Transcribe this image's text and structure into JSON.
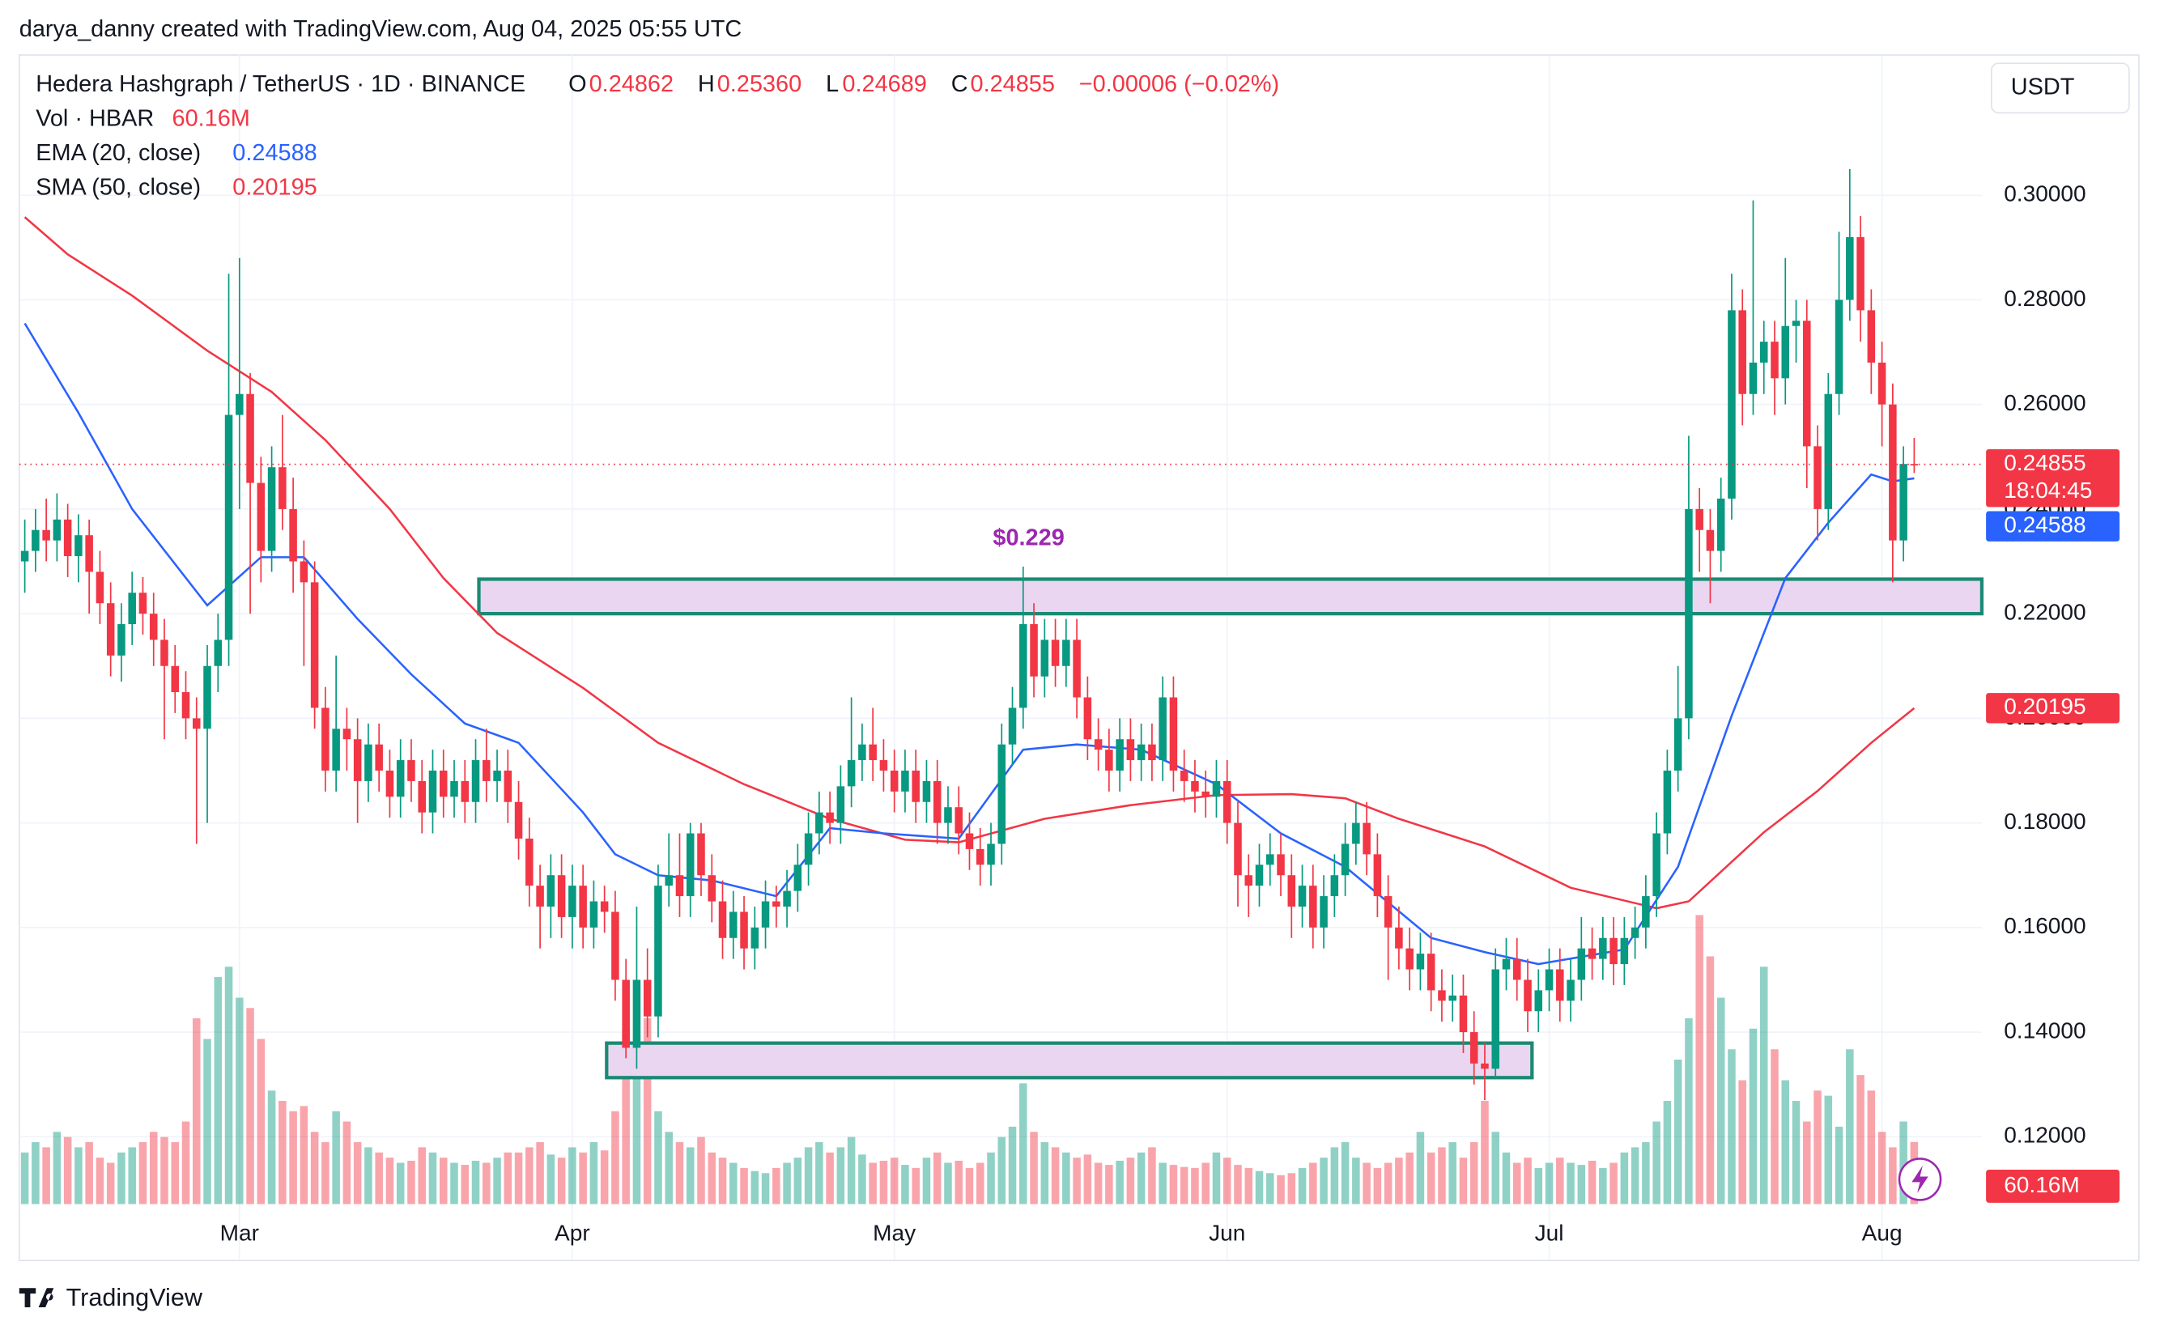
{
  "header": {
    "credit": "darya_danny created with TradingView.com, Aug 04, 2025 05:55 UTC",
    "symbol": "Hedera Hashgraph / TetherUS · 1D · BINANCE",
    "o_label": "O",
    "open": "0.24862",
    "h_label": "H",
    "high": "0.25360",
    "l_label": "L",
    "low": "0.24689",
    "c_label": "C",
    "close": "0.24855",
    "change": "−0.00006 (−0.02%)",
    "vol_label": "Vol · HBAR",
    "vol_value": "60.16M",
    "ema_label": "EMA (20, close)",
    "ema_value": "0.24588",
    "sma_label": "SMA (50, close)",
    "sma_value": "0.20195"
  },
  "footer": {
    "brand": "TradingView"
  },
  "chart_data": {
    "type": "candlestick",
    "currency": "USDT",
    "ylim": [
      0.0966,
      0.3268
    ],
    "yticks": [
      {
        "value": 0.12,
        "label": "0.12000"
      },
      {
        "value": 0.14,
        "label": "0.14000"
      },
      {
        "value": 0.16,
        "label": "0.16000"
      },
      {
        "value": 0.18,
        "label": "0.18000"
      },
      {
        "value": 0.2,
        "label": "0.20000"
      },
      {
        "value": 0.22,
        "label": "0.22000"
      },
      {
        "value": 0.24,
        "label": "0.24000"
      },
      {
        "value": 0.26,
        "label": "0.26000"
      },
      {
        "value": 0.28,
        "label": "0.28000"
      },
      {
        "value": 0.3,
        "label": "0.30000"
      }
    ],
    "xticks": [
      {
        "value": 20,
        "label": "Mar"
      },
      {
        "value": 51,
        "label": "Apr"
      },
      {
        "value": 81,
        "label": "May"
      },
      {
        "value": 112,
        "label": "Jun"
      },
      {
        "value": 142,
        "label": "Jul"
      },
      {
        "value": 173,
        "label": "Aug"
      }
    ],
    "grid": true,
    "up_color": "#089981",
    "down_color": "#f23645",
    "candles": [
      [
        0.23,
        0.238,
        0.224,
        0.232
      ],
      [
        0.232,
        0.24,
        0.228,
        0.236
      ],
      [
        0.236,
        0.242,
        0.23,
        0.234
      ],
      [
        0.234,
        0.243,
        0.23,
        0.238
      ],
      [
        0.238,
        0.241,
        0.227,
        0.231
      ],
      [
        0.231,
        0.239,
        0.226,
        0.235
      ],
      [
        0.235,
        0.238,
        0.22,
        0.228
      ],
      [
        0.228,
        0.232,
        0.218,
        0.222
      ],
      [
        0.222,
        0.226,
        0.208,
        0.212
      ],
      [
        0.212,
        0.222,
        0.207,
        0.218
      ],
      [
        0.218,
        0.228,
        0.214,
        0.224
      ],
      [
        0.224,
        0.227,
        0.216,
        0.22
      ],
      [
        0.22,
        0.224,
        0.21,
        0.215
      ],
      [
        0.215,
        0.219,
        0.196,
        0.21
      ],
      [
        0.21,
        0.214,
        0.201,
        0.205
      ],
      [
        0.205,
        0.209,
        0.196,
        0.2
      ],
      [
        0.2,
        0.204,
        0.176,
        0.198
      ],
      [
        0.198,
        0.214,
        0.18,
        0.21
      ],
      [
        0.21,
        0.22,
        0.205,
        0.215
      ],
      [
        0.215,
        0.285,
        0.21,
        0.258
      ],
      [
        0.258,
        0.288,
        0.24,
        0.262
      ],
      [
        0.262,
        0.266,
        0.22,
        0.245
      ],
      [
        0.245,
        0.25,
        0.226,
        0.232
      ],
      [
        0.232,
        0.252,
        0.228,
        0.248
      ],
      [
        0.248,
        0.258,
        0.236,
        0.24
      ],
      [
        0.24,
        0.246,
        0.224,
        0.23
      ],
      [
        0.23,
        0.234,
        0.21,
        0.226
      ],
      [
        0.226,
        0.23,
        0.198,
        0.202
      ],
      [
        0.202,
        0.206,
        0.186,
        0.19
      ],
      [
        0.19,
        0.212,
        0.186,
        0.198
      ],
      [
        0.198,
        0.202,
        0.19,
        0.196
      ],
      [
        0.196,
        0.2,
        0.18,
        0.188
      ],
      [
        0.188,
        0.199,
        0.184,
        0.195
      ],
      [
        0.195,
        0.199,
        0.186,
        0.19
      ],
      [
        0.19,
        0.194,
        0.181,
        0.185
      ],
      [
        0.185,
        0.196,
        0.181,
        0.192
      ],
      [
        0.192,
        0.196,
        0.184,
        0.188
      ],
      [
        0.188,
        0.192,
        0.178,
        0.182
      ],
      [
        0.182,
        0.194,
        0.178,
        0.19
      ],
      [
        0.19,
        0.194,
        0.181,
        0.185
      ],
      [
        0.185,
        0.192,
        0.181,
        0.188
      ],
      [
        0.188,
        0.192,
        0.18,
        0.184
      ],
      [
        0.184,
        0.196,
        0.18,
        0.192
      ],
      [
        0.192,
        0.198,
        0.184,
        0.188
      ],
      [
        0.188,
        0.194,
        0.184,
        0.19
      ],
      [
        0.19,
        0.194,
        0.18,
        0.184
      ],
      [
        0.184,
        0.188,
        0.173,
        0.177
      ],
      [
        0.177,
        0.181,
        0.164,
        0.168
      ],
      [
        0.168,
        0.172,
        0.156,
        0.164
      ],
      [
        0.164,
        0.174,
        0.158,
        0.17
      ],
      [
        0.17,
        0.174,
        0.158,
        0.162
      ],
      [
        0.162,
        0.172,
        0.156,
        0.168
      ],
      [
        0.168,
        0.172,
        0.156,
        0.16
      ],
      [
        0.16,
        0.169,
        0.156,
        0.165
      ],
      [
        0.165,
        0.168,
        0.159,
        0.163
      ],
      [
        0.163,
        0.167,
        0.146,
        0.15
      ],
      [
        0.15,
        0.154,
        0.135,
        0.137
      ],
      [
        0.137,
        0.164,
        0.133,
        0.15
      ],
      [
        0.15,
        0.156,
        0.139,
        0.143
      ],
      [
        0.143,
        0.172,
        0.139,
        0.168
      ],
      [
        0.168,
        0.178,
        0.164,
        0.17
      ],
      [
        0.17,
        0.178,
        0.162,
        0.166
      ],
      [
        0.166,
        0.18,
        0.162,
        0.178
      ],
      [
        0.178,
        0.18,
        0.166,
        0.17
      ],
      [
        0.17,
        0.174,
        0.161,
        0.165
      ],
      [
        0.165,
        0.169,
        0.154,
        0.158
      ],
      [
        0.158,
        0.167,
        0.154,
        0.163
      ],
      [
        0.163,
        0.166,
        0.152,
        0.156
      ],
      [
        0.156,
        0.164,
        0.152,
        0.16
      ],
      [
        0.16,
        0.169,
        0.156,
        0.165
      ],
      [
        0.165,
        0.168,
        0.16,
        0.164
      ],
      [
        0.164,
        0.171,
        0.16,
        0.167
      ],
      [
        0.167,
        0.176,
        0.163,
        0.172
      ],
      [
        0.172,
        0.182,
        0.168,
        0.178
      ],
      [
        0.178,
        0.186,
        0.174,
        0.182
      ],
      [
        0.182,
        0.186,
        0.176,
        0.18
      ],
      [
        0.18,
        0.191,
        0.176,
        0.187
      ],
      [
        0.187,
        0.204,
        0.183,
        0.192
      ],
      [
        0.192,
        0.199,
        0.188,
        0.195
      ],
      [
        0.195,
        0.202,
        0.188,
        0.192
      ],
      [
        0.192,
        0.196,
        0.186,
        0.19
      ],
      [
        0.19,
        0.194,
        0.182,
        0.186
      ],
      [
        0.186,
        0.194,
        0.182,
        0.19
      ],
      [
        0.19,
        0.194,
        0.18,
        0.184
      ],
      [
        0.184,
        0.192,
        0.18,
        0.188
      ],
      [
        0.188,
        0.192,
        0.176,
        0.18
      ],
      [
        0.18,
        0.187,
        0.176,
        0.183
      ],
      [
        0.183,
        0.187,
        0.174,
        0.178
      ],
      [
        0.178,
        0.182,
        0.171,
        0.175
      ],
      [
        0.175,
        0.179,
        0.168,
        0.172
      ],
      [
        0.172,
        0.18,
        0.168,
        0.176
      ],
      [
        0.176,
        0.199,
        0.172,
        0.195
      ],
      [
        0.195,
        0.206,
        0.191,
        0.202
      ],
      [
        0.202,
        0.229,
        0.198,
        0.218
      ],
      [
        0.218,
        0.222,
        0.204,
        0.208
      ],
      [
        0.208,
        0.219,
        0.204,
        0.215
      ],
      [
        0.215,
        0.219,
        0.206,
        0.21
      ],
      [
        0.21,
        0.219,
        0.206,
        0.215
      ],
      [
        0.215,
        0.219,
        0.2,
        0.204
      ],
      [
        0.204,
        0.208,
        0.192,
        0.196
      ],
      [
        0.196,
        0.2,
        0.19,
        0.194
      ],
      [
        0.194,
        0.198,
        0.186,
        0.19
      ],
      [
        0.19,
        0.2,
        0.186,
        0.196
      ],
      [
        0.196,
        0.2,
        0.188,
        0.192
      ],
      [
        0.192,
        0.199,
        0.188,
        0.195
      ],
      [
        0.195,
        0.199,
        0.188,
        0.192
      ],
      [
        0.192,
        0.208,
        0.188,
        0.204
      ],
      [
        0.204,
        0.208,
        0.186,
        0.19
      ],
      [
        0.19,
        0.194,
        0.184,
        0.188
      ],
      [
        0.188,
        0.192,
        0.182,
        0.186
      ],
      [
        0.186,
        0.19,
        0.181,
        0.185
      ],
      [
        0.185,
        0.192,
        0.181,
        0.188
      ],
      [
        0.188,
        0.192,
        0.176,
        0.18
      ],
      [
        0.18,
        0.184,
        0.164,
        0.17
      ],
      [
        0.17,
        0.174,
        0.162,
        0.168
      ],
      [
        0.168,
        0.176,
        0.164,
        0.172
      ],
      [
        0.172,
        0.178,
        0.168,
        0.174
      ],
      [
        0.174,
        0.178,
        0.166,
        0.17
      ],
      [
        0.17,
        0.174,
        0.158,
        0.164
      ],
      [
        0.164,
        0.172,
        0.16,
        0.168
      ],
      [
        0.168,
        0.172,
        0.156,
        0.16
      ],
      [
        0.16,
        0.17,
        0.156,
        0.166
      ],
      [
        0.166,
        0.174,
        0.162,
        0.17
      ],
      [
        0.17,
        0.18,
        0.166,
        0.176
      ],
      [
        0.176,
        0.184,
        0.172,
        0.18
      ],
      [
        0.18,
        0.184,
        0.17,
        0.174
      ],
      [
        0.174,
        0.178,
        0.162,
        0.166
      ],
      [
        0.166,
        0.17,
        0.15,
        0.16
      ],
      [
        0.16,
        0.164,
        0.152,
        0.156
      ],
      [
        0.156,
        0.16,
        0.148,
        0.152
      ],
      [
        0.152,
        0.159,
        0.148,
        0.155
      ],
      [
        0.155,
        0.159,
        0.144,
        0.148
      ],
      [
        0.148,
        0.152,
        0.142,
        0.146
      ],
      [
        0.146,
        0.151,
        0.142,
        0.147
      ],
      [
        0.147,
        0.151,
        0.136,
        0.14
      ],
      [
        0.14,
        0.144,
        0.13,
        0.134
      ],
      [
        0.134,
        0.138,
        0.127,
        0.133
      ],
      [
        0.133,
        0.156,
        0.131,
        0.152
      ],
      [
        0.152,
        0.158,
        0.148,
        0.154
      ],
      [
        0.154,
        0.158,
        0.146,
        0.15
      ],
      [
        0.15,
        0.154,
        0.14,
        0.144
      ],
      [
        0.144,
        0.152,
        0.14,
        0.148
      ],
      [
        0.148,
        0.156,
        0.144,
        0.152
      ],
      [
        0.152,
        0.156,
        0.142,
        0.146
      ],
      [
        0.146,
        0.154,
        0.142,
        0.15
      ],
      [
        0.15,
        0.162,
        0.146,
        0.156
      ],
      [
        0.156,
        0.16,
        0.15,
        0.154
      ],
      [
        0.154,
        0.162,
        0.15,
        0.158
      ],
      [
        0.158,
        0.162,
        0.149,
        0.153
      ],
      [
        0.153,
        0.162,
        0.149,
        0.158
      ],
      [
        0.158,
        0.164,
        0.154,
        0.16
      ],
      [
        0.16,
        0.17,
        0.156,
        0.166
      ],
      [
        0.166,
        0.182,
        0.162,
        0.178
      ],
      [
        0.178,
        0.194,
        0.174,
        0.19
      ],
      [
        0.19,
        0.21,
        0.186,
        0.2
      ],
      [
        0.2,
        0.254,
        0.196,
        0.24
      ],
      [
        0.24,
        0.244,
        0.228,
        0.236
      ],
      [
        0.236,
        0.24,
        0.222,
        0.232
      ],
      [
        0.232,
        0.246,
        0.228,
        0.242
      ],
      [
        0.242,
        0.285,
        0.238,
        0.278
      ],
      [
        0.278,
        0.282,
        0.256,
        0.262
      ],
      [
        0.262,
        0.299,
        0.258,
        0.268
      ],
      [
        0.268,
        0.276,
        0.262,
        0.272
      ],
      [
        0.272,
        0.276,
        0.258,
        0.265
      ],
      [
        0.265,
        0.288,
        0.26,
        0.275
      ],
      [
        0.275,
        0.28,
        0.268,
        0.276
      ],
      [
        0.276,
        0.28,
        0.244,
        0.252
      ],
      [
        0.252,
        0.256,
        0.234,
        0.24
      ],
      [
        0.24,
        0.266,
        0.236,
        0.262
      ],
      [
        0.262,
        0.293,
        0.258,
        0.28
      ],
      [
        0.28,
        0.305,
        0.276,
        0.292
      ],
      [
        0.292,
        0.296,
        0.272,
        0.278
      ],
      [
        0.278,
        0.282,
        0.262,
        0.268
      ],
      [
        0.268,
        0.272,
        0.252,
        0.26
      ],
      [
        0.26,
        0.264,
        0.226,
        0.234
      ],
      [
        0.234,
        0.252,
        0.23,
        0.24862
      ],
      [
        0.24862,
        0.2536,
        0.24689,
        0.24855
      ]
    ],
    "volume": [
      50,
      60,
      55,
      70,
      65,
      55,
      60,
      45,
      40,
      50,
      55,
      60,
      70,
      65,
      60,
      80,
      180,
      160,
      220,
      230,
      200,
      190,
      160,
      110,
      100,
      90,
      95,
      70,
      60,
      90,
      80,
      60,
      55,
      50,
      45,
      40,
      42,
      55,
      50,
      45,
      40,
      38,
      42,
      40,
      45,
      50,
      50,
      55,
      60,
      48,
      45,
      55,
      50,
      60,
      52,
      90,
      170,
      140,
      180,
      90,
      70,
      60,
      55,
      65,
      50,
      45,
      40,
      35,
      32,
      30,
      35,
      40,
      45,
      55,
      60,
      50,
      55,
      65,
      48,
      40,
      42,
      45,
      38,
      35,
      45,
      50,
      40,
      42,
      35,
      40,
      50,
      65,
      75,
      117,
      70,
      60,
      55,
      50,
      45,
      48,
      40,
      38,
      42,
      45,
      50,
      55,
      40,
      38,
      36,
      35,
      40,
      50,
      45,
      38,
      35,
      32,
      30,
      28,
      30,
      35,
      40,
      45,
      55,
      60,
      45,
      40,
      35,
      40,
      45,
      50,
      70,
      50,
      55,
      60,
      45,
      60,
      100,
      70,
      50,
      40,
      45,
      35,
      40,
      45,
      40,
      38,
      42,
      35,
      40,
      50,
      55,
      60,
      80,
      100,
      140,
      180,
      280,
      240,
      200,
      150,
      120,
      170,
      230,
      150,
      120,
      100,
      80,
      110,
      105,
      75,
      150,
      125,
      110,
      70,
      55,
      80,
      60.16
    ],
    "volume_tag": "60.16M",
    "ema": {
      "color": "#2962ff",
      "x": [
        0,
        5,
        10,
        17,
        22,
        26,
        31,
        36,
        41,
        46,
        52,
        55,
        59,
        64,
        70,
        75,
        80,
        87,
        93,
        98,
        104,
        111,
        117,
        123,
        131,
        136,
        141,
        149,
        154,
        159,
        164,
        168,
        172,
        174,
        176
      ],
      "values": [
        0.2755,
        0.2584,
        0.24,
        0.2216,
        0.2308,
        0.2308,
        0.219,
        0.2084,
        0.199,
        0.1953,
        0.182,
        0.174,
        0.17,
        0.169,
        0.166,
        0.179,
        0.178,
        0.177,
        0.194,
        0.195,
        0.194,
        0.1874,
        0.178,
        0.1716,
        0.158,
        0.1553,
        0.153,
        0.1558,
        0.1716,
        0.2005,
        0.2268,
        0.2374,
        0.2466,
        0.2453,
        0.24588
      ]
    },
    "sma": {
      "color": "#f23645",
      "x": [
        0,
        4,
        10,
        17,
        23,
        28,
        34,
        39,
        44,
        52,
        59,
        67,
        75,
        82,
        87,
        95,
        103,
        111,
        118,
        123,
        128,
        136,
        144,
        152,
        155,
        162,
        167,
        172,
        176
      ],
      "values": [
        0.2958,
        0.2887,
        0.2808,
        0.2703,
        0.2624,
        0.2532,
        0.24,
        0.2268,
        0.2163,
        0.2058,
        0.1953,
        0.1874,
        0.1808,
        0.1768,
        0.1763,
        0.1808,
        0.1834,
        0.1853,
        0.1855,
        0.1847,
        0.1808,
        0.1755,
        0.1676,
        0.1637,
        0.165,
        0.1782,
        0.1861,
        0.1953,
        0.20195
      ]
    },
    "zones": [
      {
        "top": 0.2266,
        "bottom": 0.22,
        "from": 42.3,
        "to": 182.3,
        "fill": "#ead6f0",
        "stroke": "#1a8a74"
      },
      {
        "top": 0.1379,
        "bottom": 0.1313,
        "from": 54.2,
        "to": 140.4,
        "fill": "#ead6f0",
        "stroke": "#1a8a74"
      }
    ],
    "annotation": {
      "text": "$0.229",
      "index": 93,
      "color": "#9c27b0"
    },
    "countdown": "18:04:45"
  }
}
